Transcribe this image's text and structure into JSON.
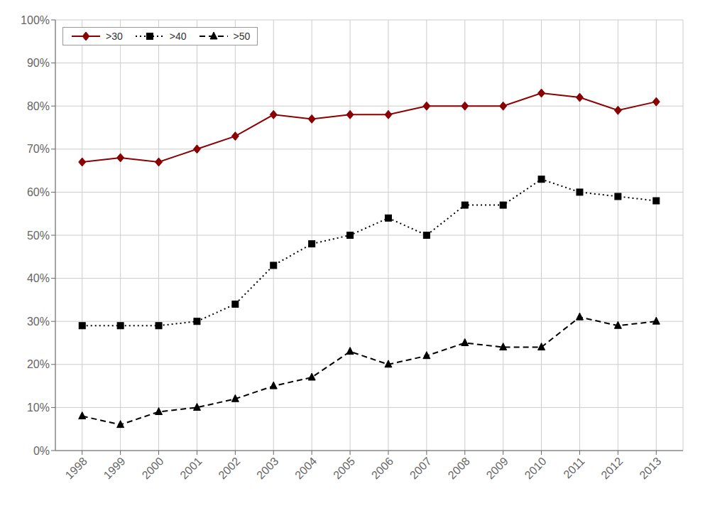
{
  "chart_data": {
    "type": "line",
    "x": [
      1998,
      1999,
      2000,
      2001,
      2002,
      2003,
      2004,
      2005,
      2006,
      2007,
      2008,
      2009,
      2010,
      2011,
      2012,
      2013
    ],
    "series": [
      {
        "name": ">30",
        "color": "#8B0000",
        "values": [
          67,
          68,
          67,
          70,
          73,
          78,
          77,
          78,
          78,
          80,
          80,
          80,
          83,
          82,
          79,
          81
        ],
        "marker": "diamond",
        "line_style": "solid"
      },
      {
        "name": ">40",
        "color": "#000000",
        "values": [
          29,
          29,
          29,
          30,
          34,
          43,
          48,
          50,
          54,
          50,
          57,
          57,
          63,
          60,
          59,
          58
        ],
        "marker": "square",
        "line_style": "dotted"
      },
      {
        "name": ">50",
        "color": "#000000",
        "values": [
          8,
          6,
          9,
          10,
          12,
          15,
          17,
          23,
          20,
          22,
          25,
          24,
          24,
          31,
          29,
          30
        ],
        "marker": "triangle",
        "line_style": "dashed"
      }
    ],
    "xlim": [
      1997.3,
      2013.7
    ],
    "xticks": [
      1998,
      1999,
      2000,
      2001,
      2002,
      2003,
      2004,
      2005,
      2006,
      2007,
      2008,
      2009,
      2010,
      2011,
      2012,
      2013
    ],
    "ylim": [
      0,
      100
    ],
    "yticks": [
      {
        "value": 0,
        "label": "0%"
      },
      {
        "value": 10,
        "label": "10%"
      },
      {
        "value": 20,
        "label": "20%"
      },
      {
        "value": 30,
        "label": "30%"
      },
      {
        "value": 40,
        "label": "40%"
      },
      {
        "value": 50,
        "label": "50%"
      },
      {
        "value": 60,
        "label": "60%"
      },
      {
        "value": 70,
        "label": "70%"
      },
      {
        "value": 80,
        "label": "80%"
      },
      {
        "value": 90,
        "label": "90%"
      },
      {
        "value": 100,
        "label": "100%"
      }
    ],
    "grid": true,
    "legend": "upper left"
  }
}
